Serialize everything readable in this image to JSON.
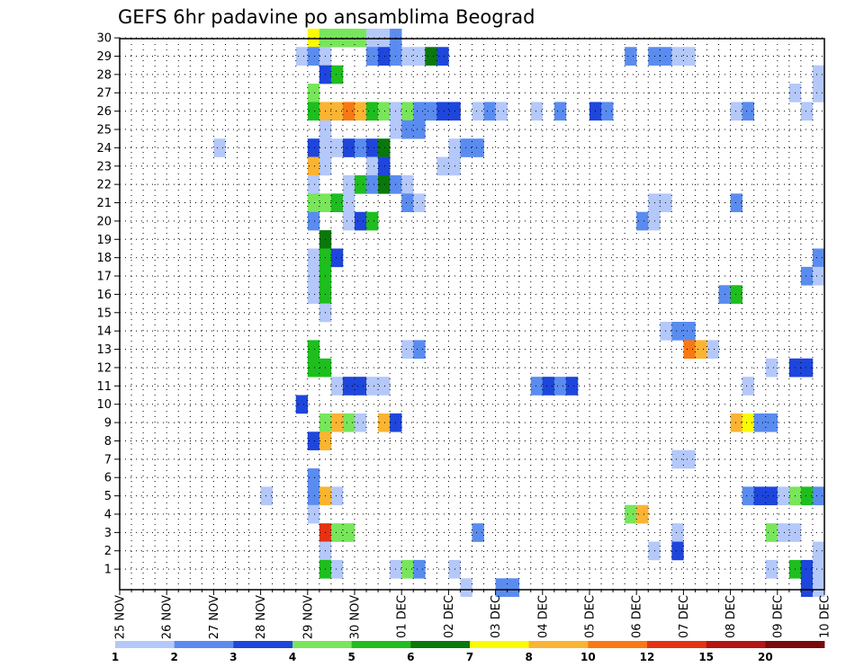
{
  "chart_data": {
    "type": "heatmap",
    "title": "GEFS 6hr padavine po ansamblima Beograd",
    "xlabel": "",
    "ylabel": "",
    "x_tick_labels": [
      "25 NOV",
      "26 NOV",
      "27 NOV",
      "28 NOV",
      "29 NOV",
      "30 NOV",
      "01 DEC",
      "02 DEC",
      "03 DEC",
      "04 DEC",
      "05 DEC",
      "06 DEC",
      "07 DEC",
      "08 DEC",
      "09 DEC",
      "10 DEC"
    ],
    "y_tick_labels": [
      "1",
      "2",
      "3",
      "4",
      "5",
      "6",
      "7",
      "8",
      "9",
      "10",
      "11",
      "12",
      "13",
      "14",
      "15",
      "16",
      "17",
      "18",
      "19",
      "20",
      "21",
      "22",
      "23",
      "24",
      "25",
      "26",
      "27",
      "28",
      "29",
      "30"
    ],
    "x_unit": "6-hour steps from 25 NOV 00Z",
    "grid": true,
    "color_levels": [
      1,
      2,
      3,
      4,
      5,
      6,
      7,
      8,
      10,
      12,
      15,
      20
    ],
    "colorbar_labels": [
      "1",
      "2",
      "3",
      "4",
      "5",
      "6",
      "7",
      "8",
      "10",
      "12",
      "15",
      "20"
    ],
    "colors": [
      "#b4c8fa",
      "#5a8cf0",
      "#1e46dc",
      "#78e65a",
      "#1ebe1e",
      "#0a780a",
      "#fafa00",
      "#fab432",
      "#fa7814",
      "#e63214",
      "#b41414",
      "#780a0a"
    ],
    "cells": [
      [
        30,
        16,
        7
      ],
      [
        30,
        17,
        4
      ],
      [
        30,
        18,
        4
      ],
      [
        30,
        19,
        4
      ],
      [
        30,
        20,
        4
      ],
      [
        30,
        21,
        1
      ],
      [
        30,
        22,
        1
      ],
      [
        30,
        23,
        2
      ],
      [
        29,
        15,
        1
      ],
      [
        29,
        16,
        2
      ],
      [
        29,
        17,
        1
      ],
      [
        29,
        21,
        2
      ],
      [
        29,
        22,
        3
      ],
      [
        29,
        23,
        2
      ],
      [
        29,
        24,
        1
      ],
      [
        29,
        25,
        1
      ],
      [
        29,
        26,
        6
      ],
      [
        29,
        27,
        3
      ],
      [
        29,
        43,
        2
      ],
      [
        29,
        45,
        2
      ],
      [
        29,
        46,
        2
      ],
      [
        29,
        47,
        1
      ],
      [
        29,
        48,
        1
      ],
      [
        28,
        17,
        3
      ],
      [
        28,
        18,
        5
      ],
      [
        28,
        59,
        1
      ],
      [
        27,
        16,
        4
      ],
      [
        27,
        57,
        1
      ],
      [
        27,
        59,
        1
      ],
      [
        26,
        16,
        5
      ],
      [
        26,
        17,
        8
      ],
      [
        26,
        18,
        8
      ],
      [
        26,
        19,
        9
      ],
      [
        26,
        20,
        8
      ],
      [
        26,
        21,
        5
      ],
      [
        26,
        22,
        4
      ],
      [
        26,
        23,
        1
      ],
      [
        26,
        24,
        4
      ],
      [
        26,
        25,
        2
      ],
      [
        26,
        26,
        2
      ],
      [
        26,
        27,
        3
      ],
      [
        26,
        28,
        3
      ],
      [
        26,
        30,
        1
      ],
      [
        26,
        31,
        2
      ],
      [
        26,
        32,
        1
      ],
      [
        26,
        35,
        1
      ],
      [
        26,
        37,
        2
      ],
      [
        26,
        40,
        3
      ],
      [
        26,
        41,
        2
      ],
      [
        26,
        52,
        1
      ],
      [
        26,
        53,
        2
      ],
      [
        26,
        58,
        1
      ],
      [
        25,
        17,
        1
      ],
      [
        25,
        23,
        1
      ],
      [
        25,
        24,
        2
      ],
      [
        25,
        25,
        2
      ],
      [
        24,
        8,
        1
      ],
      [
        24,
        16,
        3
      ],
      [
        24,
        17,
        1
      ],
      [
        24,
        18,
        1
      ],
      [
        24,
        19,
        3
      ],
      [
        24,
        20,
        2
      ],
      [
        24,
        21,
        3
      ],
      [
        24,
        22,
        6
      ],
      [
        24,
        28,
        1
      ],
      [
        24,
        29,
        2
      ],
      [
        24,
        30,
        2
      ],
      [
        23,
        16,
        8
      ],
      [
        23,
        17,
        1
      ],
      [
        23,
        21,
        1
      ],
      [
        23,
        22,
        3
      ],
      [
        23,
        27,
        1
      ],
      [
        23,
        28,
        1
      ],
      [
        22,
        16,
        1
      ],
      [
        22,
        19,
        1
      ],
      [
        22,
        20,
        5
      ],
      [
        22,
        21,
        2
      ],
      [
        22,
        22,
        6
      ],
      [
        22,
        23,
        2
      ],
      [
        22,
        24,
        1
      ],
      [
        21,
        16,
        4
      ],
      [
        21,
        17,
        4
      ],
      [
        21,
        18,
        5
      ],
      [
        21,
        19,
        1
      ],
      [
        21,
        24,
        2
      ],
      [
        21,
        25,
        1
      ],
      [
        21,
        45,
        1
      ],
      [
        21,
        46,
        1
      ],
      [
        21,
        52,
        2
      ],
      [
        20,
        16,
        2
      ],
      [
        20,
        19,
        1
      ],
      [
        20,
        20,
        3
      ],
      [
        20,
        21,
        5
      ],
      [
        20,
        44,
        2
      ],
      [
        20,
        45,
        1
      ],
      [
        19,
        17,
        6
      ],
      [
        18,
        16,
        1
      ],
      [
        18,
        17,
        5
      ],
      [
        18,
        18,
        3
      ],
      [
        18,
        59,
        2
      ],
      [
        17,
        16,
        1
      ],
      [
        17,
        17,
        5
      ],
      [
        17,
        58,
        2
      ],
      [
        17,
        59,
        1
      ],
      [
        16,
        16,
        1
      ],
      [
        16,
        17,
        5
      ],
      [
        16,
        51,
        2
      ],
      [
        16,
        52,
        5
      ],
      [
        15,
        17,
        1
      ],
      [
        14,
        46,
        1
      ],
      [
        14,
        47,
        2
      ],
      [
        14,
        48,
        2
      ],
      [
        13,
        16,
        5
      ],
      [
        13,
        24,
        1
      ],
      [
        13,
        25,
        2
      ],
      [
        13,
        48,
        9
      ],
      [
        13,
        49,
        8
      ],
      [
        13,
        50,
        1
      ],
      [
        12,
        16,
        5
      ],
      [
        12,
        17,
        5
      ],
      [
        12,
        55,
        1
      ],
      [
        12,
        57,
        3
      ],
      [
        12,
        58,
        3
      ],
      [
        11,
        18,
        1
      ],
      [
        11,
        19,
        3
      ],
      [
        11,
        20,
        3
      ],
      [
        11,
        21,
        1
      ],
      [
        11,
        22,
        1
      ],
      [
        11,
        35,
        2
      ],
      [
        11,
        36,
        3
      ],
      [
        11,
        37,
        2
      ],
      [
        11,
        38,
        3
      ],
      [
        11,
        53,
        1
      ],
      [
        10,
        15,
        3
      ],
      [
        9,
        17,
        4
      ],
      [
        9,
        18,
        8
      ],
      [
        9,
        19,
        4
      ],
      [
        9,
        20,
        1
      ],
      [
        9,
        22,
        8
      ],
      [
        9,
        23,
        3
      ],
      [
        9,
        52,
        8
      ],
      [
        9,
        53,
        7
      ],
      [
        9,
        54,
        2
      ],
      [
        9,
        55,
        2
      ],
      [
        8,
        16,
        3
      ],
      [
        8,
        17,
        8
      ],
      [
        7,
        47,
        1
      ],
      [
        7,
        48,
        1
      ],
      [
        6,
        16,
        2
      ],
      [
        5,
        12,
        1
      ],
      [
        5,
        16,
        2
      ],
      [
        5,
        17,
        8
      ],
      [
        5,
        18,
        1
      ],
      [
        5,
        53,
        2
      ],
      [
        5,
        54,
        3
      ],
      [
        5,
        55,
        3
      ],
      [
        5,
        56,
        1
      ],
      [
        5,
        57,
        4
      ],
      [
        5,
        58,
        5
      ],
      [
        5,
        59,
        2
      ],
      [
        4,
        16,
        1
      ],
      [
        4,
        43,
        4
      ],
      [
        4,
        44,
        8
      ],
      [
        3,
        17,
        10
      ],
      [
        3,
        18,
        4
      ],
      [
        3,
        19,
        4
      ],
      [
        3,
        30,
        2
      ],
      [
        3,
        47,
        1
      ],
      [
        3,
        55,
        4
      ],
      [
        3,
        56,
        1
      ],
      [
        3,
        57,
        1
      ],
      [
        2,
        17,
        1
      ],
      [
        2,
        45,
        1
      ],
      [
        2,
        47,
        3
      ],
      [
        2,
        59,
        1
      ],
      [
        1,
        17,
        5
      ],
      [
        1,
        18,
        1
      ],
      [
        1,
        23,
        1
      ],
      [
        1,
        24,
        4
      ],
      [
        1,
        25,
        2
      ],
      [
        1,
        28,
        1
      ],
      [
        1,
        55,
        1
      ],
      [
        1,
        57,
        5
      ],
      [
        1,
        58,
        3
      ],
      [
        1,
        59,
        1
      ],
      [
        0,
        29,
        1
      ],
      [
        0,
        32,
        2
      ],
      [
        0,
        33,
        2
      ],
      [
        0,
        58,
        3
      ],
      [
        0,
        59,
        1
      ]
    ]
  }
}
